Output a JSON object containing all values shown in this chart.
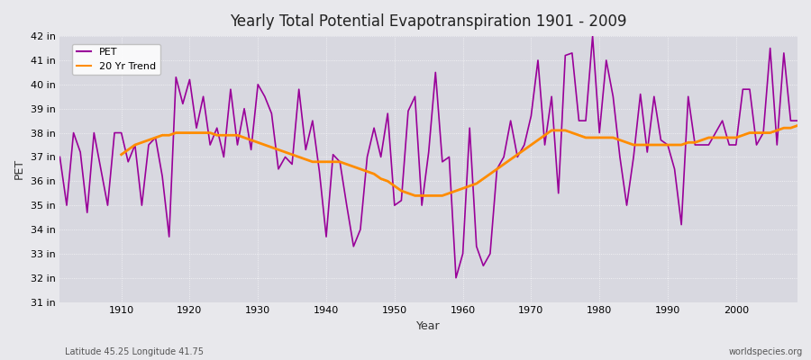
{
  "title": "Yearly Total Potential Evapotranspiration 1901 - 2009",
  "xlabel": "Year",
  "ylabel": "PET",
  "subtitle_left": "Latitude 45.25 Longitude 41.75",
  "subtitle_right": "worldspecies.org",
  "ylim": [
    31,
    42
  ],
  "xlim": [
    1901,
    2009
  ],
  "ytick_labels": [
    "31 in",
    "32 in",
    "33 in",
    "34 in",
    "35 in",
    "36 in",
    "37 in",
    "38 in",
    "39 in",
    "40 in",
    "41 in",
    "42 in"
  ],
  "ytick_values": [
    31,
    32,
    33,
    34,
    35,
    36,
    37,
    38,
    39,
    40,
    41,
    42
  ],
  "pet_color": "#990099",
  "trend_color": "#FF8C00",
  "bg_color": "#E8E8EC",
  "plot_bg_color": "#D8D8E0",
  "years": [
    1901,
    1902,
    1903,
    1904,
    1905,
    1906,
    1907,
    1908,
    1909,
    1910,
    1911,
    1912,
    1913,
    1914,
    1915,
    1916,
    1917,
    1918,
    1919,
    1920,
    1921,
    1922,
    1923,
    1924,
    1925,
    1926,
    1927,
    1928,
    1929,
    1930,
    1931,
    1932,
    1933,
    1934,
    1935,
    1936,
    1937,
    1938,
    1939,
    1940,
    1941,
    1942,
    1943,
    1944,
    1945,
    1946,
    1947,
    1948,
    1949,
    1950,
    1951,
    1952,
    1953,
    1954,
    1955,
    1956,
    1957,
    1958,
    1959,
    1960,
    1961,
    1962,
    1963,
    1964,
    1965,
    1966,
    1967,
    1968,
    1969,
    1970,
    1971,
    1972,
    1973,
    1974,
    1975,
    1976,
    1977,
    1978,
    1979,
    1980,
    1981,
    1982,
    1983,
    1984,
    1985,
    1986,
    1987,
    1988,
    1989,
    1990,
    1991,
    1992,
    1993,
    1994,
    1995,
    1996,
    1997,
    1998,
    1999,
    2000,
    2001,
    2002,
    2003,
    2004,
    2005,
    2006,
    2007,
    2008,
    2009
  ],
  "pet_values": [
    37.0,
    35.0,
    38.0,
    37.2,
    34.7,
    38.0,
    36.5,
    35.0,
    38.0,
    38.0,
    36.8,
    37.5,
    35.0,
    37.5,
    37.8,
    36.2,
    33.7,
    40.3,
    39.2,
    40.2,
    38.2,
    39.5,
    37.5,
    38.2,
    37.0,
    39.8,
    37.5,
    39.0,
    37.3,
    40.0,
    39.5,
    38.8,
    36.5,
    37.0,
    36.7,
    39.8,
    37.3,
    38.5,
    36.4,
    33.7,
    37.1,
    36.8,
    35.0,
    33.3,
    34.0,
    37.0,
    38.2,
    37.0,
    38.8,
    35.0,
    35.2,
    38.9,
    39.5,
    35.0,
    37.2,
    40.5,
    36.8,
    37.0,
    32.0,
    33.0,
    38.2,
    33.3,
    32.5,
    33.0,
    36.5,
    37.0,
    38.5,
    37.0,
    37.5,
    38.7,
    41.0,
    37.5,
    39.5,
    35.5,
    41.2,
    41.3,
    38.5,
    38.5,
    42.0,
    38.0,
    41.0,
    39.5,
    37.0,
    35.0,
    37.0,
    39.6,
    37.2,
    39.5,
    37.7,
    37.5,
    36.5,
    34.2,
    39.5,
    37.5,
    37.5,
    37.5,
    38.0,
    38.5,
    37.5,
    37.5,
    39.8,
    39.8,
    37.5,
    38.0,
    41.5,
    37.5,
    41.3,
    38.5,
    38.5
  ],
  "trend_years": [
    1910,
    1911,
    1912,
    1913,
    1914,
    1915,
    1916,
    1917,
    1918,
    1919,
    1920,
    1921,
    1922,
    1923,
    1924,
    1925,
    1926,
    1927,
    1928,
    1929,
    1930,
    1931,
    1932,
    1933,
    1934,
    1935,
    1936,
    1937,
    1938,
    1939,
    1940,
    1941,
    1942,
    1943,
    1944,
    1945,
    1946,
    1947,
    1948,
    1949,
    1950,
    1951,
    1952,
    1953,
    1954,
    1955,
    1956,
    1957,
    1958,
    1959,
    1960,
    1961,
    1962,
    1963,
    1964,
    1965,
    1966,
    1967,
    1968,
    1969,
    1970,
    1971,
    1972,
    1973,
    1974,
    1975,
    1976,
    1977,
    1978,
    1979,
    1980,
    1981,
    1982,
    1983,
    1984,
    1985,
    1986,
    1987,
    1988,
    1989,
    1990,
    1991,
    1992,
    1993,
    1994,
    1995,
    1996,
    1997,
    1998,
    1999,
    2000,
    2001,
    2002,
    2003,
    2004,
    2005,
    2006,
    2007,
    2008,
    2009
  ],
  "trend_values": [
    37.1,
    37.3,
    37.5,
    37.6,
    37.7,
    37.8,
    37.9,
    37.9,
    38.0,
    38.0,
    38.0,
    38.0,
    38.0,
    38.0,
    37.9,
    37.9,
    37.9,
    37.9,
    37.8,
    37.7,
    37.6,
    37.5,
    37.4,
    37.3,
    37.2,
    37.1,
    37.0,
    36.9,
    36.8,
    36.8,
    36.8,
    36.8,
    36.8,
    36.7,
    36.6,
    36.5,
    36.4,
    36.3,
    36.1,
    36.0,
    35.8,
    35.6,
    35.5,
    35.4,
    35.4,
    35.4,
    35.4,
    35.4,
    35.5,
    35.6,
    35.7,
    35.8,
    35.9,
    36.1,
    36.3,
    36.5,
    36.7,
    36.9,
    37.1,
    37.3,
    37.5,
    37.7,
    37.9,
    38.1,
    38.1,
    38.1,
    38.0,
    37.9,
    37.8,
    37.8,
    37.8,
    37.8,
    37.8,
    37.7,
    37.6,
    37.5,
    37.5,
    37.5,
    37.5,
    37.5,
    37.5,
    37.5,
    37.5,
    37.6,
    37.6,
    37.7,
    37.8,
    37.8,
    37.8,
    37.8,
    37.8,
    37.9,
    38.0,
    38.0,
    38.0,
    38.0,
    38.1,
    38.2,
    38.2,
    38.3
  ]
}
